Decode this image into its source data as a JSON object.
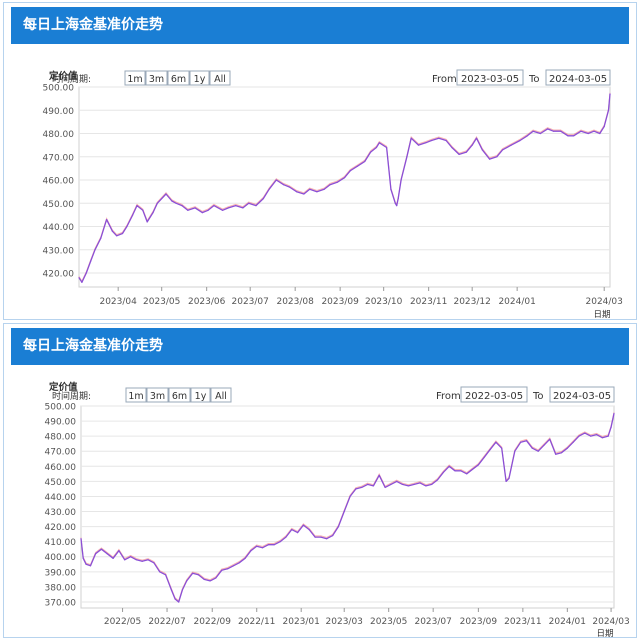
{
  "colors": {
    "header_bg": "#1a7ed4",
    "grid": "#e6e6e6",
    "series_primary": "#8a4fd6",
    "series_secondary": "#f07070"
  },
  "charts": [
    {
      "header_title": "每日上海金基准价走势",
      "period_label": "时间周期:",
      "period_buttons": [
        "1m",
        "3m",
        "6m",
        "1y",
        "All"
      ],
      "from_label": "From",
      "from_value": "2023-03-05",
      "to_label": "To",
      "to_value": "2024-03-05",
      "y_title": "定价值",
      "x_unit_label": "日期"
    },
    {
      "header_title": "每日上海金基准价走势",
      "period_label": "时间周期:",
      "period_buttons": [
        "1m",
        "3m",
        "6m",
        "1y",
        "All"
      ],
      "from_label": "From",
      "from_value": "2022-03-05",
      "to_label": "To",
      "to_value": "2024-03-05",
      "y_title": "定价值",
      "x_unit_label": "日期"
    }
  ],
  "chart_data": [
    {
      "type": "line",
      "title": "每日上海金基准价走势",
      "ylabel": "定价值",
      "xlabel": "日期",
      "ylim": [
        414,
        500
      ],
      "xlim": [
        "2023-03-05",
        "2024-03-05"
      ],
      "yticks": [
        420,
        430,
        440,
        450,
        460,
        470,
        480,
        490,
        500
      ],
      "yticklabels": [
        "420.00",
        "430.00",
        "440.00",
        "450.00",
        "460.00",
        "470.00",
        "480.00",
        "490.00",
        "500.00"
      ],
      "xticks": [
        "2023-04-01",
        "2023-05-01",
        "2023-06-01",
        "2023-07-01",
        "2023-08-01",
        "2023-09-01",
        "2023-10-01",
        "2023-11-01",
        "2023-12-01",
        "2024-01-01",
        "2024-03-01"
      ],
      "xticklabels": [
        "2023/04",
        "2023/05",
        "2023/06",
        "2023/07",
        "2023/08",
        "2023/09",
        "2023/10",
        "2023/11",
        "2023/12",
        "2024/01",
        "2024/03"
      ],
      "grid": true,
      "series": [
        {
          "x": [
            "2023-03-05",
            "2023-03-07",
            "2023-03-10",
            "2023-03-13",
            "2023-03-16",
            "2023-03-20",
            "2023-03-24",
            "2023-03-28",
            "2023-03-31",
            "2023-04-04",
            "2023-04-07",
            "2023-04-11",
            "2023-04-14",
            "2023-04-18",
            "2023-04-21",
            "2023-04-25",
            "2023-04-28",
            "2023-05-04",
            "2023-05-08",
            "2023-05-11",
            "2023-05-15",
            "2023-05-19",
            "2023-05-24",
            "2023-05-29",
            "2023-06-02",
            "2023-06-06",
            "2023-06-12",
            "2023-06-16",
            "2023-06-21",
            "2023-06-26",
            "2023-06-30",
            "2023-07-05",
            "2023-07-10",
            "2023-07-14",
            "2023-07-19",
            "2023-07-24",
            "2023-07-28",
            "2023-08-02",
            "2023-08-07",
            "2023-08-11",
            "2023-08-16",
            "2023-08-21",
            "2023-08-25",
            "2023-08-30",
            "2023-09-04",
            "2023-09-08",
            "2023-09-13",
            "2023-09-18",
            "2023-09-22",
            "2023-09-26",
            "2023-09-28",
            "2023-10-03",
            "2023-10-06",
            "2023-10-09",
            "2023-10-10",
            "2023-10-11",
            "2023-10-13",
            "2023-10-17",
            "2023-10-20",
            "2023-10-25",
            "2023-10-30",
            "2023-11-03",
            "2023-11-08",
            "2023-11-13",
            "2023-11-17",
            "2023-11-22",
            "2023-11-27",
            "2023-12-01",
            "2023-12-04",
            "2023-12-08",
            "2023-12-13",
            "2023-12-18",
            "2023-12-22",
            "2023-12-28",
            "2024-01-03",
            "2024-01-08",
            "2024-01-12",
            "2024-01-17",
            "2024-01-22",
            "2024-01-26",
            "2024-01-31",
            "2024-02-05",
            "2024-02-09",
            "2024-02-14",
            "2024-02-19",
            "2024-02-23",
            "2024-02-27",
            "2024-03-01",
            "2024-03-04",
            "2024-03-05"
          ],
          "values": [
            418,
            416,
            420,
            425,
            430,
            435,
            443,
            438,
            436,
            437,
            440,
            445,
            449,
            447,
            442,
            446,
            450,
            454,
            451,
            450,
            449,
            447,
            448,
            446,
            447,
            449,
            447,
            448,
            449,
            448,
            450,
            449,
            452,
            456,
            460,
            458,
            457,
            455,
            454,
            456,
            455,
            456,
            458,
            459,
            461,
            464,
            466,
            468,
            472,
            474,
            476,
            474,
            456,
            450,
            449,
            452,
            460,
            470,
            478,
            475,
            476,
            477,
            478,
            477,
            474,
            471,
            472,
            475,
            478,
            473,
            469,
            470,
            473,
            475,
            477,
            479,
            481,
            480,
            482,
            481,
            481,
            479,
            479,
            481,
            480,
            481,
            480,
            483,
            490,
            497
          ]
        }
      ]
    },
    {
      "type": "line",
      "title": "每日上海金基准价走势",
      "ylabel": "定价值",
      "xlabel": "日期",
      "ylim": [
        366,
        500
      ],
      "xlim": [
        "2022-03-05",
        "2024-03-05"
      ],
      "yticks": [
        370,
        380,
        390,
        400,
        410,
        420,
        430,
        440,
        450,
        460,
        470,
        480,
        490,
        500
      ],
      "yticklabels": [
        "370.00",
        "380.00",
        "390.00",
        "400.00",
        "410.00",
        "420.00",
        "430.00",
        "440.00",
        "450.00",
        "460.00",
        "470.00",
        "480.00",
        "490.00",
        "500.00"
      ],
      "xticks": [
        "2022-05-01",
        "2022-07-01",
        "2022-09-01",
        "2022-11-01",
        "2023-01-01",
        "2023-03-01",
        "2023-05-01",
        "2023-07-01",
        "2023-09-01",
        "2023-11-01",
        "2024-01-01",
        "2024-03-01"
      ],
      "xticklabels": [
        "2022/05",
        "2022/07",
        "2022/09",
        "2022/11",
        "2023/01",
        "2023/03",
        "2023/05",
        "2023/07",
        "2023/09",
        "2023/11",
        "2024/01",
        "2024/03"
      ],
      "grid": true,
      "series": [
        {
          "x": [
            "2022-03-05",
            "2022-03-08",
            "2022-03-12",
            "2022-03-18",
            "2022-03-25",
            "2022-04-02",
            "2022-04-10",
            "2022-04-18",
            "2022-04-26",
            "2022-05-04",
            "2022-05-12",
            "2022-05-20",
            "2022-05-28",
            "2022-06-05",
            "2022-06-13",
            "2022-06-21",
            "2022-06-29",
            "2022-07-07",
            "2022-07-12",
            "2022-07-17",
            "2022-07-22",
            "2022-07-28",
            "2022-08-05",
            "2022-08-13",
            "2022-08-21",
            "2022-08-29",
            "2022-09-06",
            "2022-09-14",
            "2022-09-22",
            "2022-09-30",
            "2022-10-08",
            "2022-10-16",
            "2022-10-24",
            "2022-11-01",
            "2022-11-09",
            "2022-11-17",
            "2022-11-25",
            "2022-12-03",
            "2022-12-11",
            "2022-12-19",
            "2022-12-27",
            "2023-01-04",
            "2023-01-12",
            "2023-01-20",
            "2023-01-28",
            "2023-02-05",
            "2023-02-13",
            "2023-02-21",
            "2023-03-01",
            "2023-03-09",
            "2023-03-17",
            "2023-03-25",
            "2023-04-02",
            "2023-04-10",
            "2023-04-18",
            "2023-04-26",
            "2023-05-04",
            "2023-05-12",
            "2023-05-20",
            "2023-05-28",
            "2023-06-05",
            "2023-06-13",
            "2023-06-21",
            "2023-06-29",
            "2023-07-07",
            "2023-07-15",
            "2023-07-23",
            "2023-07-31",
            "2023-08-08",
            "2023-08-16",
            "2023-08-24",
            "2023-09-01",
            "2023-09-09",
            "2023-09-17",
            "2023-09-25",
            "2023-10-03",
            "2023-10-09",
            "2023-10-13",
            "2023-10-21",
            "2023-10-29",
            "2023-11-06",
            "2023-11-14",
            "2023-11-22",
            "2023-11-30",
            "2023-12-08",
            "2023-12-16",
            "2023-12-24",
            "2024-01-01",
            "2024-01-09",
            "2024-01-17",
            "2024-01-25",
            "2024-02-02",
            "2024-02-10",
            "2024-02-18",
            "2024-02-26",
            "2024-03-01",
            "2024-03-05"
          ],
          "values": [
            412,
            399,
            395,
            394,
            402,
            405,
            402,
            399,
            404,
            398,
            400,
            398,
            397,
            398,
            396,
            390,
            388,
            378,
            372,
            370,
            378,
            384,
            389,
            388,
            385,
            384,
            386,
            391,
            392,
            394,
            396,
            399,
            404,
            407,
            406,
            408,
            408,
            410,
            413,
            418,
            416,
            421,
            418,
            413,
            413,
            412,
            414,
            420,
            430,
            440,
            445,
            446,
            448,
            447,
            454,
            446,
            448,
            450,
            448,
            447,
            448,
            449,
            447,
            448,
            451,
            456,
            460,
            457,
            457,
            455,
            458,
            461,
            466,
            471,
            476,
            472,
            450,
            452,
            470,
            476,
            477,
            472,
            470,
            474,
            478,
            468,
            469,
            472,
            476,
            480,
            482,
            480,
            481,
            479,
            480,
            486,
            495
          ]
        }
      ]
    }
  ]
}
